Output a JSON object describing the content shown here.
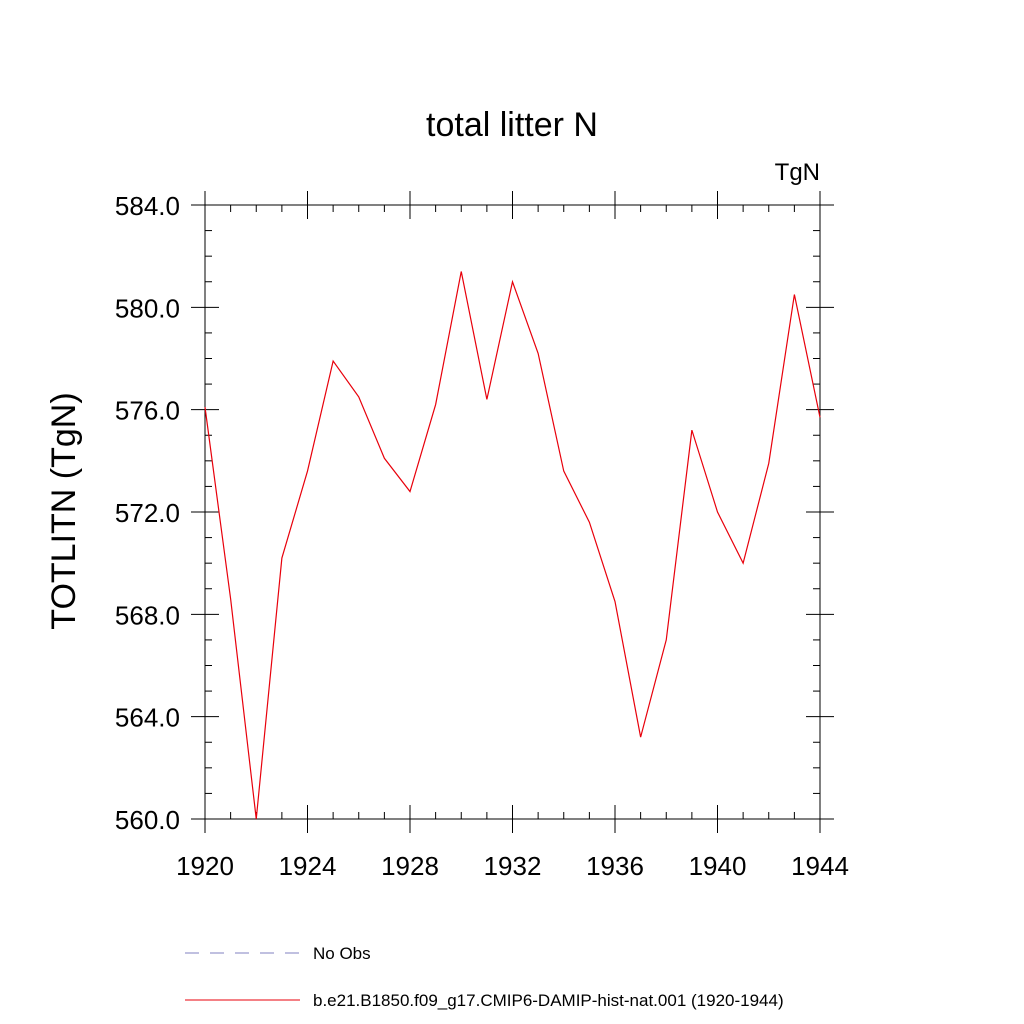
{
  "chart_data": {
    "type": "line",
    "title": "total litter N",
    "units_label": "TgN",
    "ylabel": "TOTLITN  (TgN)",
    "xlabel": "",
    "xlim": [
      1920,
      1944
    ],
    "ylim": [
      560.0,
      584.0
    ],
    "x_ticks": [
      "1920",
      "1924",
      "1928",
      "1932",
      "1936",
      "1940",
      "1944"
    ],
    "y_ticks": [
      "560.0",
      "564.0",
      "568.0",
      "572.0",
      "576.0",
      "580.0",
      "584.0"
    ],
    "grid": false,
    "legend_position": "bottom",
    "legend": [
      {
        "label": "No Obs",
        "style": "dashed",
        "color": "#8080c0"
      },
      {
        "label": "b.e21.B1850.f09_g17.CMIP6-DAMIP-hist-nat.001 (1920-1944)",
        "style": "solid",
        "color": "#e8000b"
      }
    ],
    "series": [
      {
        "name": "b.e21.B1850.f09_g17.CMIP6-DAMIP-hist-nat.001 (1920-1944)",
        "color": "#e8000b",
        "x": [
          1920,
          1921,
          1922,
          1923,
          1924,
          1925,
          1926,
          1927,
          1928,
          1929,
          1930,
          1931,
          1932,
          1933,
          1934,
          1935,
          1936,
          1937,
          1938,
          1939,
          1940,
          1941,
          1942,
          1943,
          1944
        ],
        "values": [
          576.1,
          568.6,
          560.0,
          570.2,
          573.6,
          577.9,
          576.5,
          574.1,
          572.8,
          576.2,
          581.4,
          576.4,
          581.0,
          578.2,
          573.6,
          571.6,
          568.5,
          563.2,
          567.0,
          575.2,
          572.0,
          570.0,
          573.9,
          580.5,
          575.7
        ]
      }
    ]
  }
}
